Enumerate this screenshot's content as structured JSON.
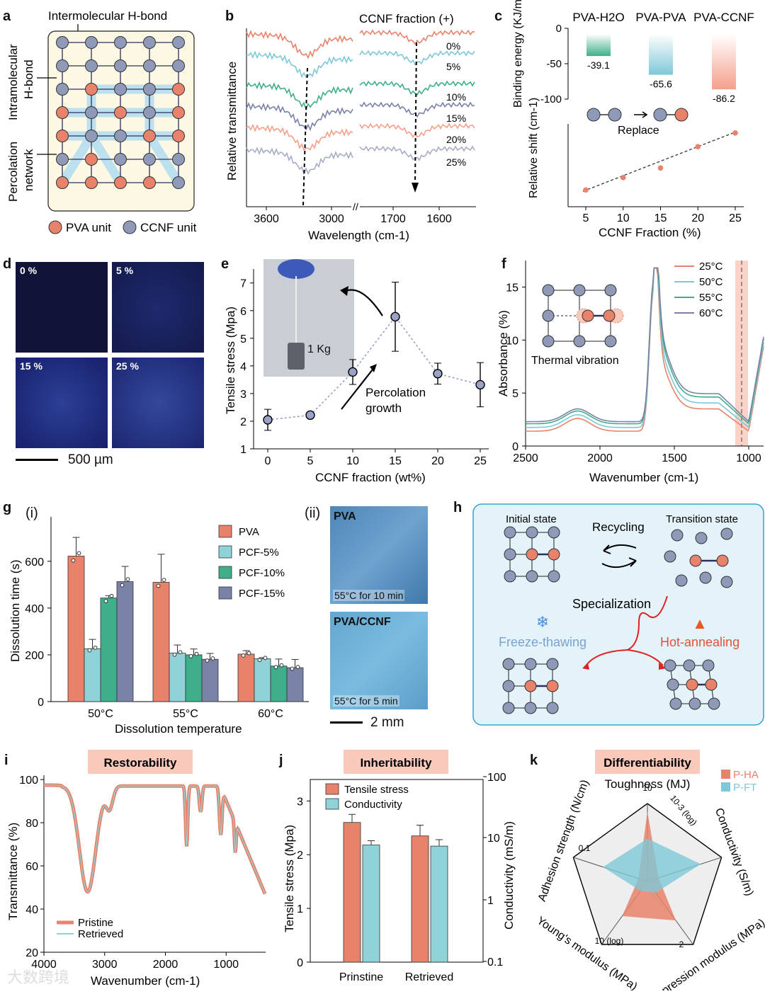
{
  "labels": {
    "a": "a",
    "b": "b",
    "c": "c",
    "d": "d",
    "e": "e",
    "f": "f",
    "g": "g",
    "h": "h",
    "i": "i",
    "j": "j",
    "k": "k"
  },
  "panel_a": {
    "top_label": "Intermolecular H-bond",
    "side1": "Intramolecular",
    "side2": "H-bond",
    "side3": "Percolation",
    "side4": "network",
    "legend_pva": "PVA unit",
    "legend_ccnf": "CCNF unit",
    "colors": {
      "pva": "#e8826a",
      "ccnf": "#8e9ab8",
      "highlight": "#bde0ee",
      "box": "#fdf8e3"
    }
  },
  "chart_b": {
    "type": "line",
    "title": "CCNF fraction (+)",
    "xlabel": "Wavelength (cm-1)",
    "ylabel": "Relative transmittance",
    "xticks": [
      "3600",
      "3000",
      "1700",
      "1600"
    ],
    "series_labels": [
      "0%",
      "5%",
      "10%",
      "15%",
      "20%",
      "25%"
    ],
    "colors": [
      "#e8826a",
      "#7ec8d8",
      "#3fae8a",
      "#7a82a8",
      "#f4a08a",
      "#a7adc4"
    ]
  },
  "chart_c": {
    "type": "bar",
    "categories": [
      "PVA-H2O",
      "PVA-PVA",
      "PVA-CCNF"
    ],
    "values": [
      -39.1,
      -65.6,
      -86.2
    ],
    "value_labels": [
      "-39.1",
      "-65.6",
      "-86.2"
    ],
    "ylabel": "Binding energy (KJ/mol)",
    "yticks": [
      "0",
      "-50",
      "-100"
    ],
    "colors": [
      "#3fae8a",
      "#7ec8d8",
      "#f4a08a"
    ],
    "replace_label": "Replace",
    "scatter": {
      "x": [
        5,
        10,
        15,
        20,
        25
      ],
      "y": [
        0.1,
        0.28,
        0.42,
        0.73,
        0.93
      ],
      "xlabel": "CCNF Fraction (%)",
      "ylabel": "Relative shift (cm-1)",
      "xticks": [
        "5",
        "10",
        "15",
        "20",
        "25"
      ]
    }
  },
  "panel_d": {
    "images": [
      "0 %",
      "5 %",
      "15 %",
      "25 %"
    ],
    "scale": "500 µm"
  },
  "chart_e": {
    "type": "scatter",
    "x": [
      0,
      5,
      10,
      15,
      20,
      25
    ],
    "y": [
      2.05,
      2.22,
      3.78,
      5.78,
      3.72,
      3.32
    ],
    "err": [
      0.38,
      0.08,
      0.45,
      1.25,
      0.38,
      0.8
    ],
    "xlabel": "CCNF fraction (wt%)",
    "ylabel": "Tensile stress (Mpa)",
    "xticks": [
      "0",
      "5",
      "10",
      "15",
      "20",
      "25"
    ],
    "yticks": [
      "1",
      "2",
      "3",
      "4",
      "5",
      "6",
      "7"
    ],
    "annot_weight": "1 Kg",
    "annot_growth1": "Percolation",
    "annot_growth2": "growth"
  },
  "chart_f": {
    "type": "line",
    "xlabel": "Wavenumber (cm-1)",
    "ylabel": "Absorbance (%)",
    "xticks": [
      "2500",
      "2000",
      "1500",
      "1000"
    ],
    "yticks": [
      "0",
      "5",
      "10",
      "15"
    ],
    "series": [
      {
        "name": "25°C",
        "color": "#e8826a"
      },
      {
        "name": "50°C",
        "color": "#7ec8d8"
      },
      {
        "name": "55°C",
        "color": "#3fae8a"
      },
      {
        "name": "60°C",
        "color": "#7a82a8"
      }
    ],
    "inset_label": "Thermal vibration"
  },
  "chart_g": {
    "type": "bar",
    "sub_i": "(i)",
    "sub_ii": "(ii)",
    "categories": [
      "50°C",
      "55°C",
      "60°C"
    ],
    "series": [
      {
        "name": "PVA",
        "values": [
          622,
          510,
          203
        ],
        "err": [
          80,
          120,
          15
        ],
        "color": "#e8826a"
      },
      {
        "name": "PCF-5%",
        "values": [
          226,
          207,
          183
        ],
        "err": [
          40,
          35,
          5
        ],
        "color": "#8fd2d8"
      },
      {
        "name": "PCF-10%",
        "values": [
          443,
          200,
          152
        ],
        "err": [
          10,
          25,
          30
        ],
        "color": "#3fae8a"
      },
      {
        "name": "PCF-15%",
        "values": [
          513,
          181,
          145
        ],
        "err": [
          65,
          25,
          35
        ],
        "color": "#7a82a8"
      }
    ],
    "xlabel": "Dissolution temperature",
    "ylabel": "Dissolution time (s)",
    "yticks": [
      "0",
      "200",
      "400",
      "600"
    ],
    "img1_title": "PVA",
    "img1_caption": "55°C for 10 min",
    "img2_title": "PVA/CCNF",
    "img2_caption": "55°C for 5 min",
    "scale": "2 mm"
  },
  "panel_h": {
    "initial": "Initial state",
    "transition": "Transition state",
    "recycling": "Recycling",
    "specialization": "Specialization",
    "freeze": "Freeze-thawing",
    "hot": "Hot-annealing"
  },
  "chart_i": {
    "type": "line",
    "title": "Restorability",
    "xlabel": "Wavenumber (cm-1)",
    "ylabel": "Transmittance (%)",
    "xticks": [
      "4000",
      "3000",
      "2000",
      "1000"
    ],
    "yticks": [
      "20",
      "40",
      "60",
      "80",
      "100"
    ],
    "legend": [
      "Pristine",
      "Retrieved"
    ]
  },
  "chart_j": {
    "type": "bar",
    "title": "Inheritability",
    "categories": [
      "Prinstine",
      "Retrieved"
    ],
    "series": [
      {
        "name": "Tensile stress",
        "values": [
          2.6,
          2.35
        ],
        "err": [
          0.15,
          0.2
        ],
        "color": "#e8826a"
      },
      {
        "name": "Conductivity",
        "values": [
          2.18,
          2.16
        ],
        "err": [
          0.08,
          0.12
        ],
        "color": "#8fd2d8"
      }
    ],
    "ylabel": "Tensile stress (Mpa)",
    "y2label": "Conductivity (mS/m)",
    "yticks": [
      "0",
      "1",
      "2",
      "3"
    ],
    "y2ticks": [
      "0.1",
      "1",
      "10",
      "100"
    ]
  },
  "chart_k": {
    "type": "radar",
    "title": "Differentiability",
    "axes": [
      "Toughness (MJ)",
      "Conductivity (S/m)",
      "Compression modulus (MPa)",
      "Young's modulus (MPa)",
      "Adhesion strength (N/cm)"
    ],
    "scale_labels": [
      "10",
      "10-3 (log)",
      "2",
      "10 (log)",
      "0.1"
    ],
    "series": [
      {
        "name": "P-HA",
        "color": "#e8826a"
      },
      {
        "name": "P-FT",
        "color": "#7ec8d8"
      }
    ]
  },
  "watermark": "大数跨境"
}
